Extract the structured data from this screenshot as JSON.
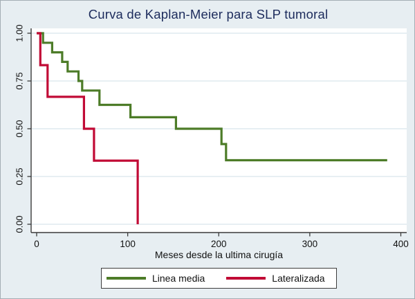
{
  "title": "Curva de Kaplan-Meier para SLP tumoral",
  "colors": {
    "figure_background": "#e7eef2",
    "plot_background": "#ffffff",
    "gridline": "#dfeaef",
    "axis": "#3a3a3a",
    "title_text": "#1c2b5c",
    "tick_text": "#111111",
    "series_green": "#4d7c28",
    "series_red": "#c10a35",
    "legend_border": "#3c3c3c"
  },
  "chart_data": {
    "type": "line",
    "chart_style": "kaplan-meier step curves, Stata s2color look",
    "title": "Curva de Kaplan-Meier para SLP tumoral",
    "xlabel": "Meses desde la ultima cirugía",
    "ylabel": "",
    "xlim": [
      0,
      400
    ],
    "ylim": [
      0.0,
      1.0
    ],
    "x_ticks": [
      {
        "value": 0,
        "label": "0"
      },
      {
        "value": 100,
        "label": "100"
      },
      {
        "value": 200,
        "label": "200"
      },
      {
        "value": 300,
        "label": "300"
      },
      {
        "value": 400,
        "label": "400"
      }
    ],
    "y_ticks": [
      {
        "value": 0.0,
        "label": "0.00"
      },
      {
        "value": 0.25,
        "label": "0.25"
      },
      {
        "value": 0.5,
        "label": "0.50"
      },
      {
        "value": 0.75,
        "label": "0.75"
      },
      {
        "value": 1.0,
        "label": "1.00"
      }
    ],
    "grid": "horizontal gridlines at each y tick",
    "legend_position": "bottom-center",
    "series": [
      {
        "name": "Linea media",
        "color": "#4d7c28",
        "points": [
          [
            0,
            1.0
          ],
          [
            7,
            1.0
          ],
          [
            7,
            0.95
          ],
          [
            17,
            0.95
          ],
          [
            17,
            0.9
          ],
          [
            28,
            0.9
          ],
          [
            28,
            0.85
          ],
          [
            34,
            0.85
          ],
          [
            34,
            0.8
          ],
          [
            46,
            0.8
          ],
          [
            46,
            0.75
          ],
          [
            50,
            0.75
          ],
          [
            50,
            0.7
          ],
          [
            69,
            0.7
          ],
          [
            69,
            0.625
          ],
          [
            103,
            0.625
          ],
          [
            103,
            0.56
          ],
          [
            153,
            0.56
          ],
          [
            153,
            0.5
          ],
          [
            203,
            0.5
          ],
          [
            203,
            0.42
          ],
          [
            208,
            0.42
          ],
          [
            208,
            0.335
          ],
          [
            385,
            0.335
          ]
        ]
      },
      {
        "name": "Lateralizada",
        "color": "#c10a35",
        "points": [
          [
            0,
            1.0
          ],
          [
            4,
            1.0
          ],
          [
            4,
            0.833
          ],
          [
            12,
            0.833
          ],
          [
            12,
            0.667
          ],
          [
            52,
            0.667
          ],
          [
            52,
            0.5
          ],
          [
            63,
            0.5
          ],
          [
            63,
            0.333
          ],
          [
            111,
            0.333
          ],
          [
            111,
            0.0
          ]
        ]
      }
    ]
  }
}
